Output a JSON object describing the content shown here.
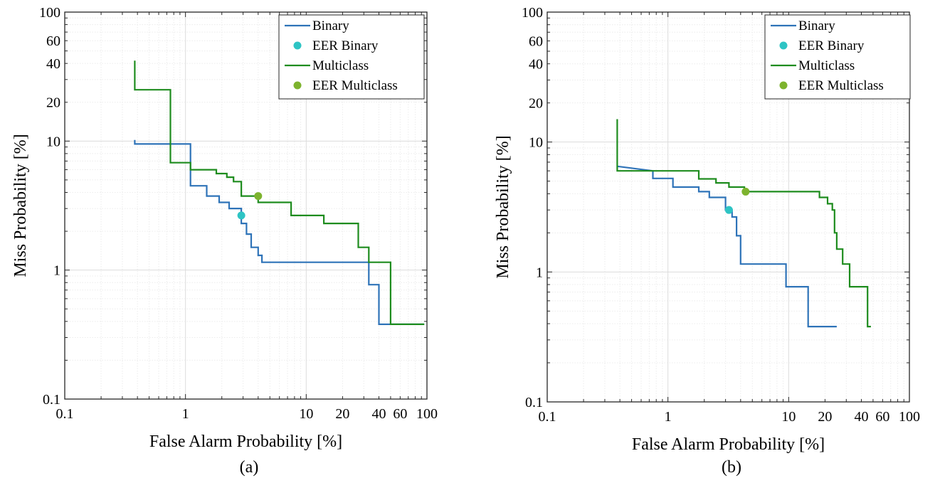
{
  "chart_data": [
    {
      "type": "line",
      "caption": "(a)",
      "xlabel": "False Alarm Probability [%]",
      "ylabel": "Miss Probability [%]",
      "xscale": "log",
      "yscale": "log",
      "xlim": [
        0.1,
        100
      ],
      "ylim": [
        0.1,
        100
      ],
      "xticks": [
        0.1,
        1,
        10,
        20,
        40,
        60,
        100
      ],
      "xtick_labels": [
        "0.1",
        "1",
        "10",
        "20",
        "40",
        "60",
        "100"
      ],
      "yticks": [
        0.1,
        1,
        10,
        20,
        40,
        60,
        100
      ],
      "ytick_labels": [
        "0.1",
        "1",
        "10",
        "20",
        "40",
        "60",
        "100"
      ],
      "grid": true,
      "legend_position": "top-right",
      "series": [
        {
          "name": "Binary",
          "kind": "line",
          "color": "#2E73B8",
          "x": [
            0.38,
            0.38,
            1.1,
            1.1,
            1.5,
            1.5,
            1.9,
            1.9,
            2.3,
            2.3,
            2.9,
            2.9,
            3.2,
            3.2,
            3.5,
            3.5,
            4.0,
            4.0,
            4.3,
            4.3,
            33,
            33,
            37,
            37,
            40,
            40,
            95
          ],
          "y": [
            10.2,
            9.5,
            9.5,
            4.5,
            4.5,
            3.75,
            3.75,
            3.35,
            3.35,
            3.0,
            3.0,
            2.3,
            2.3,
            1.9,
            1.9,
            1.5,
            1.5,
            1.3,
            1.3,
            1.15,
            1.15,
            0.77,
            0.77,
            0.77,
            0.77,
            0.38,
            0.38
          ]
        },
        {
          "name": "EER Binary",
          "kind": "marker",
          "color": "#2EC4C4",
          "x": [
            2.9
          ],
          "y": [
            2.65
          ]
        },
        {
          "name": "Multiclass",
          "kind": "line",
          "color": "#1E8C1E",
          "x": [
            0.38,
            0.38,
            0.75,
            0.75,
            1.1,
            1.1,
            1.8,
            1.8,
            2.2,
            2.2,
            2.5,
            2.5,
            2.9,
            2.9,
            4.0,
            4.0,
            7.5,
            7.5,
            14,
            14,
            27,
            27,
            33,
            33,
            50,
            50,
            95
          ],
          "y": [
            42,
            25,
            25,
            6.8,
            6.8,
            6.0,
            6.0,
            5.6,
            5.6,
            5.25,
            5.25,
            4.85,
            4.85,
            3.75,
            3.75,
            3.35,
            3.35,
            2.65,
            2.65,
            2.3,
            2.3,
            1.5,
            1.5,
            1.15,
            1.15,
            0.38,
            0.38
          ]
        },
        {
          "name": "EER Multiclass",
          "kind": "marker",
          "color": "#7DB32E",
          "x": [
            4.0
          ],
          "y": [
            3.75
          ]
        }
      ]
    },
    {
      "type": "line",
      "caption": "(b)",
      "xlabel": "False Alarm Probability [%]",
      "ylabel": "Miss Probability [%]",
      "xscale": "log",
      "yscale": "log",
      "xlim": [
        0.1,
        100
      ],
      "ylim": [
        0.1,
        100
      ],
      "xticks": [
        0.1,
        1,
        10,
        20,
        40,
        60,
        100
      ],
      "xtick_labels": [
        "0.1",
        "1",
        "10",
        "20",
        "40",
        "60",
        "100"
      ],
      "yticks": [
        0.1,
        1,
        10,
        20,
        40,
        60,
        100
      ],
      "ytick_labels": [
        "0.1",
        "1",
        "10",
        "20",
        "40",
        "60",
        "100"
      ],
      "grid": true,
      "legend_position": "top-right",
      "series": [
        {
          "name": "Binary",
          "kind": "line",
          "color": "#2E73B8",
          "x": [
            0.38,
            0.38,
            0.75,
            0.75,
            1.1,
            1.1,
            1.8,
            1.8,
            2.2,
            2.2,
            3.0,
            3.0,
            3.4,
            3.4,
            3.7,
            3.7,
            4.0,
            4.0,
            9.5,
            9.5,
            14.5,
            14.5,
            25
          ],
          "y": [
            6.5,
            6.5,
            6.0,
            5.25,
            5.25,
            4.5,
            4.5,
            4.15,
            4.15,
            3.75,
            3.75,
            3.0,
            3.0,
            2.65,
            2.65,
            1.9,
            1.9,
            1.15,
            1.15,
            0.77,
            0.77,
            0.38,
            0.38
          ]
        },
        {
          "name": "EER Binary",
          "kind": "marker",
          "color": "#2EC4C4",
          "x": [
            3.2
          ],
          "y": [
            3.0
          ]
        },
        {
          "name": "Multiclass",
          "kind": "line",
          "color": "#1E8C1E",
          "x": [
            0.38,
            0.38,
            0.38,
            1.8,
            1.8,
            2.5,
            2.5,
            3.2,
            3.2,
            4.3,
            4.3,
            18,
            18,
            21,
            21,
            23,
            23,
            24,
            24,
            25,
            25,
            28,
            28,
            32,
            32,
            45,
            45,
            48
          ],
          "y": [
            15,
            6.5,
            6.0,
            6.0,
            5.2,
            5.2,
            4.85,
            4.85,
            4.5,
            4.5,
            4.15,
            4.15,
            3.75,
            3.75,
            3.35,
            3.35,
            3.0,
            3.0,
            2.0,
            2.0,
            1.5,
            1.5,
            1.15,
            1.15,
            0.77,
            0.77,
            0.38,
            0.38
          ]
        },
        {
          "name": "EER Multiclass",
          "kind": "marker",
          "color": "#7DB32E",
          "x": [
            4.4
          ],
          "y": [
            4.15
          ]
        }
      ]
    }
  ]
}
